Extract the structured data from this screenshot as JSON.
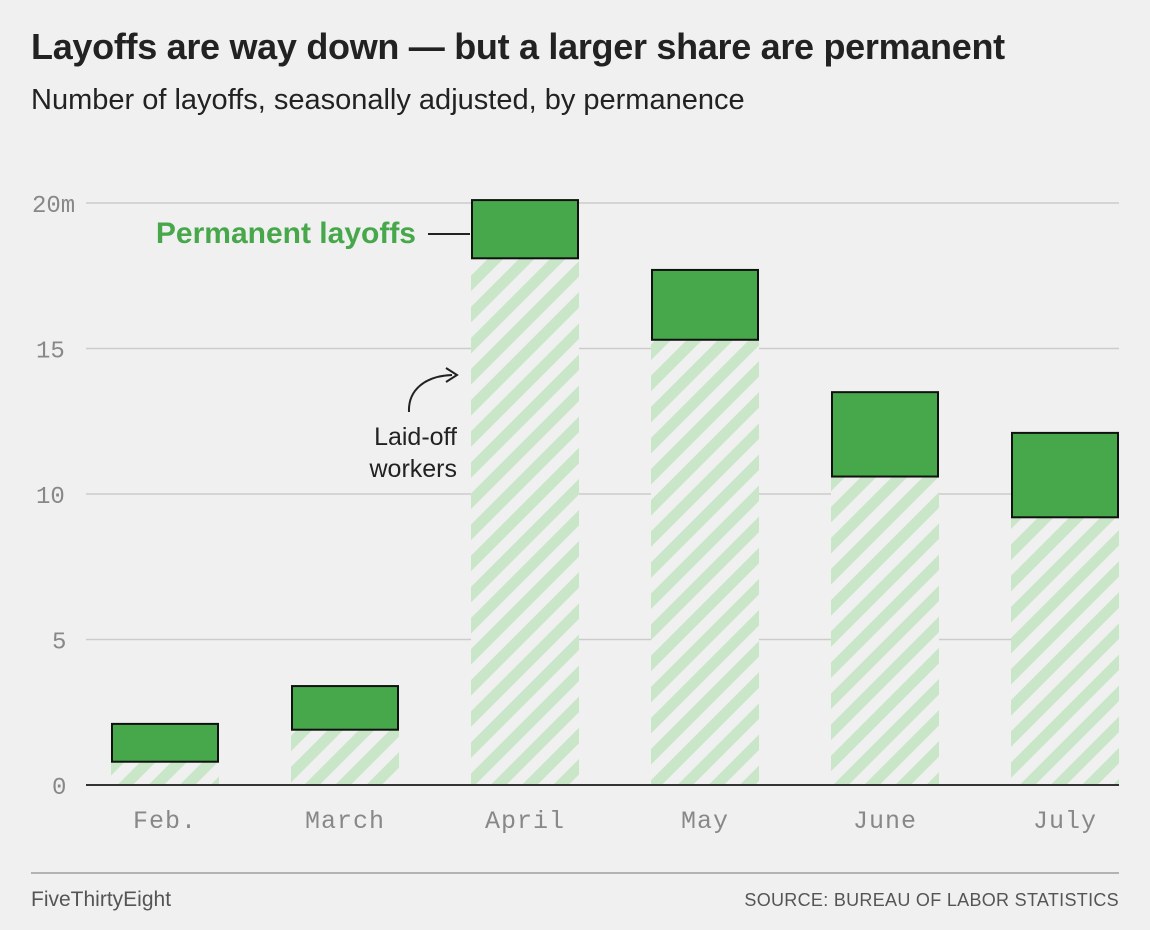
{
  "header": {
    "title": "Layoffs are way down — but a larger share are permanent",
    "subtitle": "Number of layoffs, seasonally adjusted, by permanence"
  },
  "footer": {
    "brand": "FiveThirtyEight",
    "source": "SOURCE: BUREAU OF LABOR STATISTICS"
  },
  "colors": {
    "permanent": "#46a84a",
    "laid_off_stripe": "#c9e7c8",
    "background": "#f0f0f0",
    "grid": "#cccccc",
    "axis_text": "#888888"
  },
  "chart_data": {
    "type": "bar",
    "stacked": true,
    "categories": [
      "Feb.",
      "March",
      "April",
      "May",
      "June",
      "July"
    ],
    "series": [
      {
        "name": "Laid-off workers",
        "values": [
          0.8,
          1.9,
          18.1,
          15.3,
          10.6,
          9.2
        ]
      },
      {
        "name": "Permanent layoffs",
        "values": [
          1.3,
          1.5,
          2.0,
          2.4,
          2.9,
          2.9
        ]
      }
    ],
    "y_ticks": [
      {
        "value": 0,
        "label": "0"
      },
      {
        "value": 5,
        "label": "5"
      },
      {
        "value": 10,
        "label": "10"
      },
      {
        "value": 15,
        "label": "15"
      },
      {
        "value": 20,
        "label": "20m"
      }
    ],
    "ylim": [
      0,
      20
    ],
    "grid": true,
    "annotations": {
      "permanent_label": "Permanent layoffs",
      "laid_off_line1": "Laid-off",
      "laid_off_line2": "workers"
    }
  }
}
